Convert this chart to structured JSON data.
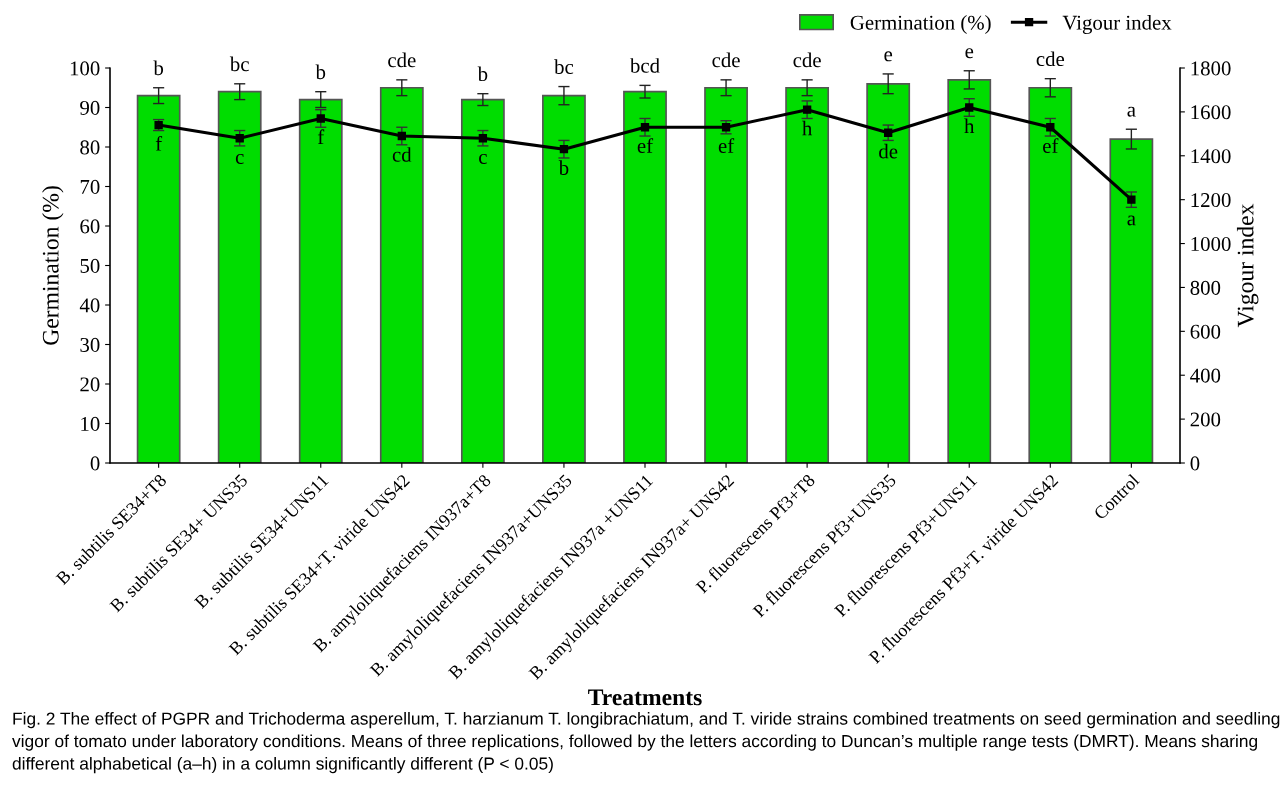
{
  "chart_data": {
    "type": "bar",
    "xlabel": "Treatments",
    "ylabel": "Germination (%)",
    "y2label": "Vigour index",
    "categories": [
      "B. subtilis SE34+T8",
      "B. subtilis SE34+ UNS35",
      "B. subtilis SE34+UNS11",
      "B. subtilis SE34+T. viride UNS42",
      "B. amyloliquefaciens IN937a+T8",
      "B. amyloliquefaciens IN937a+UNS35",
      "B. amyloliquefaciens IN937a +UNS11",
      "B. amyloliquefaciens IN937a+ UNS42",
      "P. fluorescens Pf3+T8",
      "P. fluorescens Pf3+UNS35",
      "P. fluorescens Pf3+UNS11",
      "P. fluorescens Pf3+T. viride UNS42",
      "Control"
    ],
    "series": [
      {
        "name": "Germination (%)",
        "color": "#00dd00",
        "values": [
          93,
          94,
          92,
          95,
          92,
          93,
          94,
          95,
          95,
          96,
          97,
          95,
          82
        ],
        "errors": [
          2,
          2,
          2,
          2,
          1.5,
          2.3,
          1.6,
          2,
          2,
          2.5,
          2.3,
          2.3,
          2.5
        ],
        "value_labels": [
          "b",
          "bc",
          "b",
          "cde",
          "b",
          "bc",
          "bcd",
          "cde",
          "cde",
          "e",
          "e",
          "cde",
          "a"
        ]
      },
      {
        "name": "Vigour index",
        "type": "line",
        "axis": "y2",
        "color": "#000000",
        "marker": "square",
        "values": [
          1540,
          1480,
          1570,
          1490,
          1480,
          1430,
          1530,
          1530,
          1610,
          1505,
          1620,
          1530,
          1200
        ],
        "errors": [
          25,
          35,
          40,
          40,
          35,
          40,
          40,
          30,
          40,
          35,
          40,
          40,
          35
        ],
        "value_labels": [
          "f",
          "c",
          "f",
          "cd",
          "c",
          "b",
          "ef",
          "ef",
          "h",
          "de",
          "h",
          "ef",
          "a"
        ]
      }
    ],
    "ylim": [
      0,
      100
    ],
    "yticks": [
      0,
      10,
      20,
      30,
      40,
      50,
      60,
      70,
      80,
      90,
      100
    ],
    "y2lim": [
      0,
      1800
    ],
    "y2ticks": [
      0,
      200,
      400,
      600,
      800,
      1000,
      1200,
      1400,
      1600,
      1800
    ],
    "legend": "top right",
    "grid": false,
    "annotations": [
      "Fig. 2 The effect of PGPR and Trichoderma asperellum, T. harzianum T. longibrachiatum, and T. viride strains combined treatments on seed germination and seedling vigor of tomato under laboratory conditions. Means of three replications, followed by the letters according to Duncan’s multiple range tests (DMRT). Means sharing different alphabetical (a–h) in a column significantly different (P < 0.05)"
    ]
  }
}
